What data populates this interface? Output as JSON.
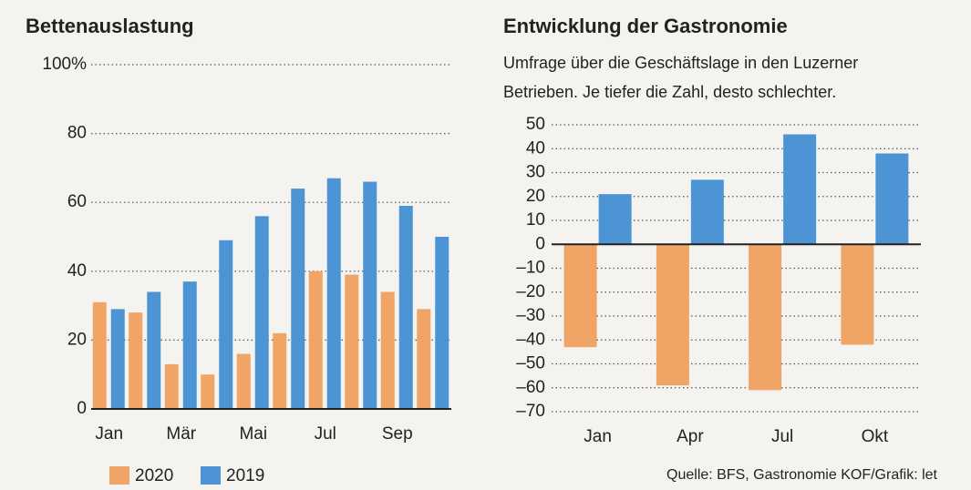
{
  "chart_data": [
    {
      "type": "bar",
      "title": "Bettenauslastung",
      "categories": [
        "Jan",
        null,
        "Mär",
        null,
        "Mai",
        null,
        "Jul",
        null,
        "Sep",
        null
      ],
      "series": [
        {
          "name": "2020",
          "color": "#f0a465",
          "values": [
            31,
            28,
            13,
            10,
            16,
            22,
            40,
            39,
            34,
            29
          ]
        },
        {
          "name": "2019",
          "color": "#4d94d4",
          "values": [
            29,
            34,
            37,
            49,
            56,
            64,
            67,
            66,
            59,
            50
          ]
        }
      ],
      "ylim": [
        0,
        100
      ],
      "yticks": [
        0,
        20,
        40,
        60,
        80,
        {
          "value": 100,
          "label": "100%"
        }
      ],
      "grid": true,
      "legend": "bottom"
    },
    {
      "type": "bar",
      "title": "Entwicklung der Gastronomie",
      "subtitle": [
        "Umfrage über die Geschäftslage in den Luzerner",
        "Betrieben. Je tiefer die Zahl, desto schlechter."
      ],
      "categories": [
        "Jan",
        "Apr",
        "Jul",
        "Okt"
      ],
      "series": [
        {
          "color": "#f0a465",
          "values": [
            -43,
            -59,
            -61,
            -42
          ]
        },
        {
          "color": "#4d94d4",
          "values": [
            21,
            27,
            46,
            38
          ]
        }
      ],
      "ylim": [
        -70,
        50
      ],
      "yticks": [
        {
          "value": -70,
          "label": "–70"
        },
        {
          "value": -60,
          "label": "–60"
        },
        {
          "value": -50,
          "label": "–50"
        },
        {
          "value": -40,
          "label": "–40"
        },
        {
          "value": -30,
          "label": "–30"
        },
        {
          "value": -20,
          "label": "–20"
        },
        {
          "value": -10,
          "label": "–10"
        },
        0,
        10,
        20,
        30,
        40,
        50
      ],
      "grid": true,
      "source": "Quelle: BFS, Gastronomie KOF/Grafik: let"
    }
  ]
}
